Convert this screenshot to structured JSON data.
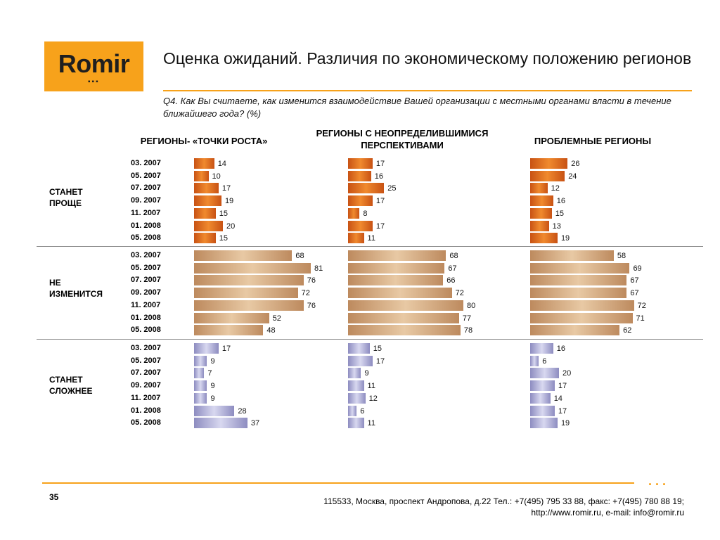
{
  "brand": {
    "logo_text": "Romir",
    "colors": {
      "orange": "#f7a21b",
      "bar_easier": "#e06a1f",
      "bar_same": "#d4a57a",
      "bar_harder": "#a9a8d6"
    }
  },
  "slide": {
    "title": "Оценка ожиданий. Различия по экономическому положению регионов",
    "question": "Q4. Как Вы считаете, как изменится взаимодействие Вашей организации с местными органами власти в течение ближайшего года? (%)"
  },
  "chart_data": {
    "type": "bar",
    "orientation": "horizontal",
    "title": "",
    "groups": [
      "СТАНЕТ ПРОЩЕ",
      "НЕ ИЗМЕНИТСЯ",
      "СТАНЕТ СЛОЖНЕЕ"
    ],
    "categories": [
      "03. 2007",
      "05. 2007",
      "07. 2007",
      "09. 2007",
      "11. 2007",
      "01. 2008",
      "05. 2008"
    ],
    "panels": [
      {
        "name": "РЕГИОНЫ- «ТОЧКИ РОСТА»",
        "series": [
          {
            "name": "СТАНЕТ ПРОЩЕ",
            "values": [
              14,
              10,
              17,
              19,
              15,
              20,
              15
            ]
          },
          {
            "name": "НЕ ИЗМЕНИТСЯ",
            "values": [
              68,
              81,
              76,
              72,
              76,
              52,
              48
            ]
          },
          {
            "name": "СТАНЕТ СЛОЖНЕЕ",
            "values": [
              17,
              9,
              7,
              9,
              9,
              28,
              37
            ]
          }
        ]
      },
      {
        "name": "РЕГИОНЫ   С НЕОПРЕДЕЛИВШИМИСЯ ПЕРСПЕКТИВАМИ",
        "series": [
          {
            "name": "СТАНЕТ ПРОЩЕ",
            "values": [
              17,
              16,
              25,
              17,
              8,
              17,
              11
            ]
          },
          {
            "name": "НЕ ИЗМЕНИТСЯ",
            "values": [
              68,
              67,
              66,
              72,
              80,
              77,
              78
            ]
          },
          {
            "name": "СТАНЕТ СЛОЖНЕЕ",
            "values": [
              15,
              17,
              9,
              11,
              12,
              6,
              11
            ]
          }
        ]
      },
      {
        "name": "ПРОБЛЕМНЫЕ РЕГИОНЫ",
        "series": [
          {
            "name": "СТАНЕТ ПРОЩЕ",
            "values": [
              26,
              24,
              12,
              16,
              15,
              13,
              19
            ]
          },
          {
            "name": "НЕ ИЗМЕНИТСЯ",
            "values": [
              58,
              69,
              67,
              67,
              72,
              71,
              62
            ]
          },
          {
            "name": "СТАНЕТ СЛОЖНЕЕ",
            "values": [
              16,
              6,
              20,
              17,
              14,
              17,
              19
            ]
          }
        ]
      }
    ]
  },
  "footer": {
    "page_number": "35",
    "address": "115533, Москва, проспект Андропова, д.22   Тел.: +7(495) 795 33 88, факс: +7(495) 780 88 19;",
    "contacts": "http://www.romir.ru, e-mail: info@romir.ru",
    "dots": "..."
  }
}
